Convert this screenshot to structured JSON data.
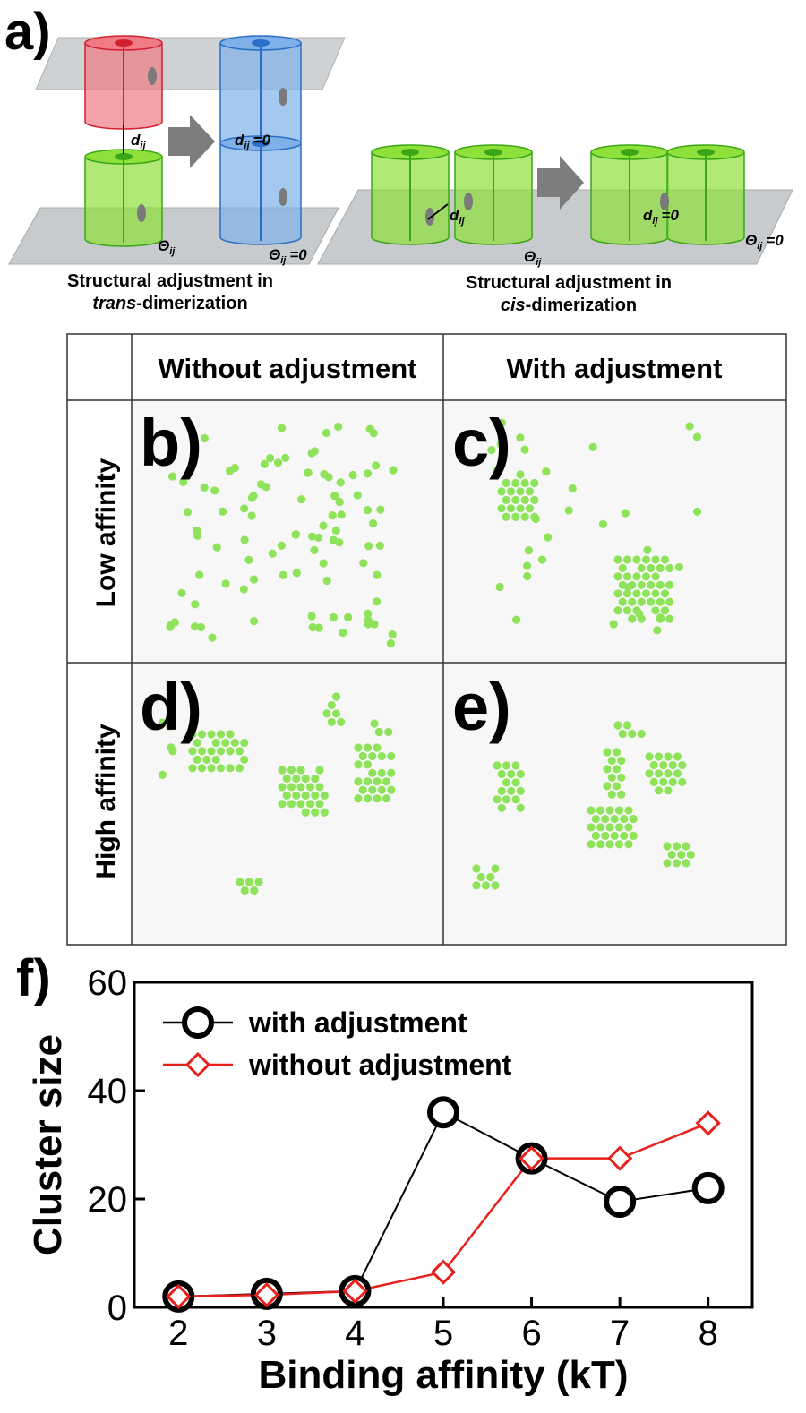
{
  "figure": {
    "panel_a": {
      "label": "a)",
      "symbols": {
        "d": "d",
        "theta": "Θ",
        "sub": "ij",
        "eq": "=0"
      },
      "captions": [
        {
          "line1": "Structural adjustment in",
          "italic": "trans",
          "rest": "-dimerization"
        },
        {
          "line1": "Structural adjustment in",
          "italic": "cis",
          "rest": "-dimerization"
        }
      ]
    },
    "grid": {
      "columns": [
        "Without adjustment",
        "With adjustment"
      ],
      "rows": [
        "Low affinity",
        "High affinity"
      ],
      "panels": [
        "b)",
        "c)",
        "d)",
        "e)"
      ]
    },
    "panel_f_label": "f)"
  },
  "chart_data": {
    "type": "line",
    "xlabel": "Binding affinity (kT)",
    "ylabel": "Cluster size",
    "x": [
      2,
      3,
      4,
      5,
      6,
      7,
      8
    ],
    "series": [
      {
        "name": "with adjustment",
        "color": "#000000",
        "marker": "circle",
        "values": [
          2,
          2.5,
          3,
          36,
          27.5,
          19.5,
          22
        ]
      },
      {
        "name": "without adjustment",
        "color": "#e8201c",
        "marker": "diamond",
        "values": [
          2,
          2.3,
          3,
          6.5,
          27.5,
          27.5,
          34
        ]
      }
    ],
    "xlim": [
      1.5,
      8.5
    ],
    "ylim": [
      0,
      60
    ],
    "xticks": [
      2,
      3,
      4,
      5,
      6,
      7,
      8
    ],
    "yticks": [
      0,
      20,
      40,
      60
    ],
    "legend": "upper left"
  }
}
